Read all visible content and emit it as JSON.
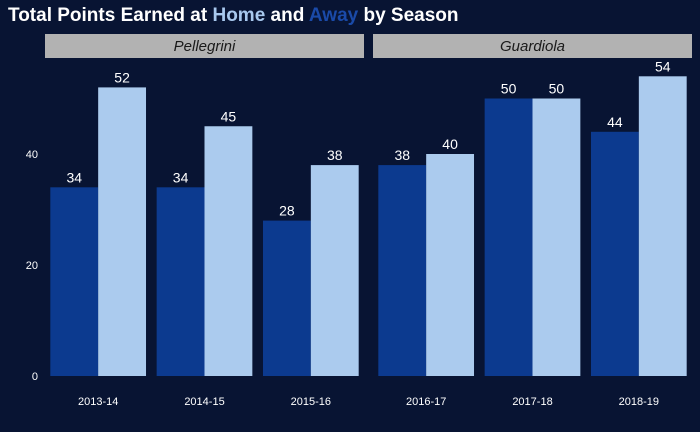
{
  "title": {
    "part1": "Total Points Earned at ",
    "home_word": "Home",
    "part2": " and ",
    "away_word": "Away",
    "part3": " by Season"
  },
  "colors": {
    "background": "#081433",
    "home": "#0c3a8f",
    "away": "#abcbee",
    "home_title": "#a8c8ee",
    "away_title": "#1a4aa8",
    "strip": "#b2b2b2",
    "strip_text": "#1a1a1a",
    "text": "#ffffff"
  },
  "chart_data": {
    "type": "bar",
    "title": "Total Points Earned at Home and Away by Season",
    "xlabel": "",
    "ylabel": "",
    "ylim": [
      0,
      54
    ],
    "y_ticks": [
      0,
      20,
      40
    ],
    "grid": false,
    "legend": "none (series named by colored words in the title)",
    "series_names": [
      "Home",
      "Away"
    ],
    "facets": [
      {
        "label": "Pellegrini",
        "categories": [
          "2013-14",
          "2014-15",
          "2015-16"
        ],
        "series": [
          {
            "name": "Home",
            "values": [
              34,
              34,
              28
            ]
          },
          {
            "name": "Away",
            "values": [
              52,
              45,
              38
            ]
          }
        ]
      },
      {
        "label": "Guardiola",
        "categories": [
          "2016-17",
          "2017-18",
          "2018-19"
        ],
        "series": [
          {
            "name": "Home",
            "values": [
              38,
              50,
              44
            ]
          },
          {
            "name": "Away",
            "values": [
              40,
              50,
              54
            ]
          }
        ]
      }
    ]
  }
}
